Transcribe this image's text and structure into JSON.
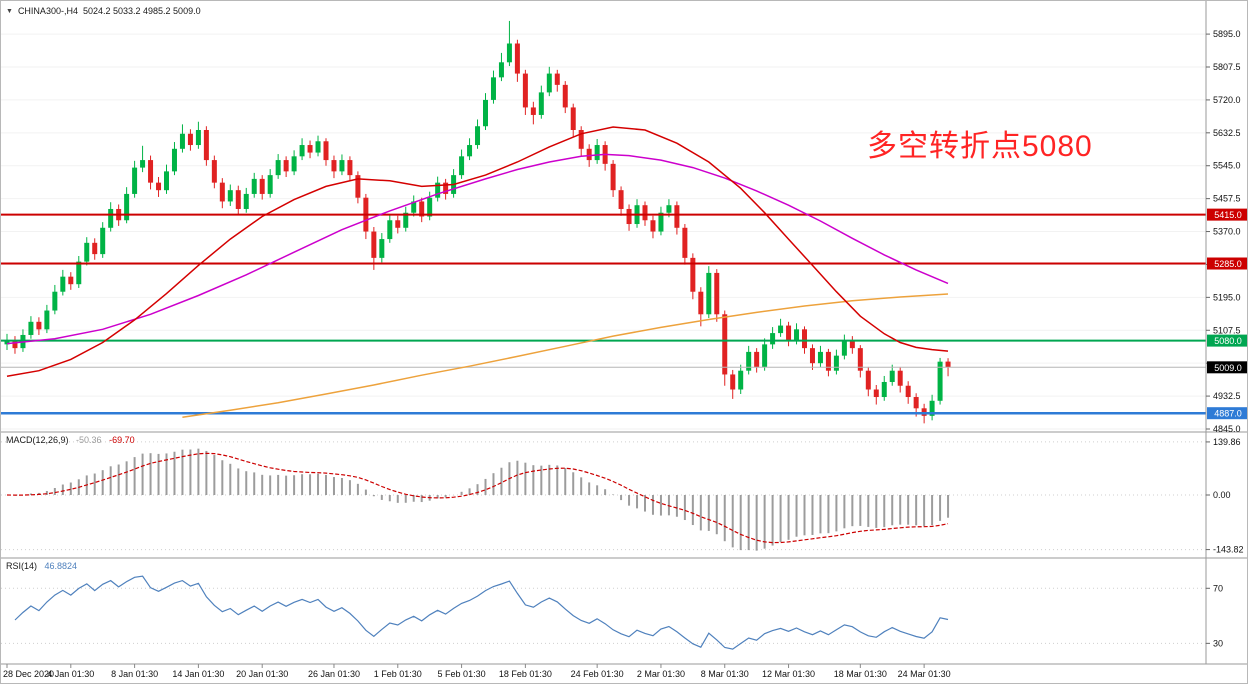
{
  "header": {
    "dropdown_icon": "▼",
    "symbol": "CHINA300-,H4",
    "ohlc": "5024.2 5033.2 4985.2 5009.0"
  },
  "annotation": {
    "text": "多空转折点5080",
    "color": "#ff2424"
  },
  "chart_data": [
    {
      "type": "candlestick",
      "title": "CHINA300-,H4",
      "timeframe": "H4",
      "ylim": [
        4837,
        5983
      ],
      "y_ticks": [
        5895.0,
        5807.5,
        5720.0,
        5632.5,
        5545.0,
        5457.5,
        5370.0,
        5282.5,
        5195.0,
        5107.5,
        5020.0,
        4932.5,
        4845.0
      ],
      "colors": {
        "up": "#00b345",
        "down": "#e02222"
      },
      "x_labels": [
        {
          "label": "28 Dec 2020",
          "index": 0
        },
        {
          "label": "4 Jan 01:30",
          "index": 8
        },
        {
          "label": "8 Jan 01:30",
          "index": 16
        },
        {
          "label": "14 Jan 01:30",
          "index": 24
        },
        {
          "label": "20 Jan 01:30",
          "index": 32
        },
        {
          "label": "26 Jan 01:30",
          "index": 41
        },
        {
          "label": "1 Feb 01:30",
          "index": 49
        },
        {
          "label": "5 Feb 01:30",
          "index": 57
        },
        {
          "label": "18 Feb 01:30",
          "index": 65
        },
        {
          "label": "24 Feb 01:30",
          "index": 74
        },
        {
          "label": "2 Mar 01:30",
          "index": 82
        },
        {
          "label": "8 Mar 01:30",
          "index": 90
        },
        {
          "label": "12 Mar 01:30",
          "index": 98
        },
        {
          "label": "18 Mar 01:30",
          "index": 107
        },
        {
          "label": "24 Mar 01:30",
          "index": 115
        }
      ],
      "levels": [
        {
          "label": "5415.0",
          "value": 5415.0,
          "color": "#cc0000",
          "width": 2
        },
        {
          "label": "5285.0",
          "value": 5285.0,
          "color": "#cc0000",
          "width": 2
        },
        {
          "label": "5080.0",
          "value": 5080.0,
          "color": "#00a651",
          "width": 2
        },
        {
          "label": "4887.0",
          "value": 4887.0,
          "color": "#2e7bd6",
          "width": 2.5
        },
        {
          "label": "5009.0",
          "value": 5009.0,
          "color": "#b5b5b5",
          "width": 1,
          "tag_bg": "#000000"
        }
      ],
      "moving_averages": [
        {
          "name": "ma-orange-slow",
          "color": "#eda23c",
          "points": [
            [
              22,
              4876
            ],
            [
              28,
              4895
            ],
            [
              34,
              4915
            ],
            [
              40,
              4938
            ],
            [
              46,
              4962
            ],
            [
              52,
              4988
            ],
            [
              58,
              5012
            ],
            [
              64,
              5038
            ],
            [
              70,
              5065
            ],
            [
              76,
              5092
            ],
            [
              82,
              5115
            ],
            [
              88,
              5136
            ],
            [
              94,
              5155
            ],
            [
              100,
              5172
            ],
            [
              106,
              5186
            ],
            [
              112,
              5196
            ],
            [
              118,
              5204
            ]
          ]
        },
        {
          "name": "ma-magenta-medium",
          "color": "#cc00cc",
          "points": [
            [
              0,
              5072
            ],
            [
              6,
              5085
            ],
            [
              12,
              5110
            ],
            [
              18,
              5150
            ],
            [
              24,
              5200
            ],
            [
              30,
              5255
            ],
            [
              36,
              5315
            ],
            [
              42,
              5375
            ],
            [
              48,
              5425
            ],
            [
              54,
              5470
            ],
            [
              60,
              5510
            ],
            [
              64,
              5535
            ],
            [
              68,
              5555
            ],
            [
              72,
              5570
            ],
            [
              75,
              5575
            ],
            [
              78,
              5572
            ],
            [
              82,
              5560
            ],
            [
              86,
              5540
            ],
            [
              90,
              5512
            ],
            [
              94,
              5478
            ],
            [
              98,
              5440
            ],
            [
              102,
              5398
            ],
            [
              106,
              5352
            ],
            [
              110,
              5308
            ],
            [
              114,
              5268
            ],
            [
              118,
              5232
            ]
          ]
        },
        {
          "name": "ma-red-fast",
          "color": "#d40000",
          "points": [
            [
              0,
              4985
            ],
            [
              4,
              5000
            ],
            [
              8,
              5030
            ],
            [
              12,
              5075
            ],
            [
              16,
              5135
            ],
            [
              20,
              5205
            ],
            [
              24,
              5280
            ],
            [
              28,
              5350
            ],
            [
              32,
              5410
            ],
            [
              36,
              5455
            ],
            [
              40,
              5490
            ],
            [
              44,
              5510
            ],
            [
              48,
              5505
            ],
            [
              52,
              5490
            ],
            [
              56,
              5495
            ],
            [
              60,
              5520
            ],
            [
              64,
              5555
            ],
            [
              68,
              5595
            ],
            [
              72,
              5630
            ],
            [
              76,
              5648
            ],
            [
              80,
              5640
            ],
            [
              84,
              5605
            ],
            [
              88,
              5555
            ],
            [
              92,
              5485
            ],
            [
              95,
              5420
            ],
            [
              98,
              5350
            ],
            [
              101,
              5280
            ],
            [
              104,
              5210
            ],
            [
              107,
              5145
            ],
            [
              110,
              5098
            ],
            [
              112,
              5075
            ],
            [
              114,
              5062
            ],
            [
              116,
              5056
            ],
            [
              118,
              5052
            ]
          ]
        }
      ],
      "ohlc": [
        [
          5070,
          5098,
          5055,
          5080
        ],
        [
          5080,
          5092,
          5045,
          5060
        ],
        [
          5060,
          5110,
          5050,
          5095
        ],
        [
          5095,
          5145,
          5085,
          5130
        ],
        [
          5130,
          5142,
          5095,
          5110
        ],
        [
          5110,
          5175,
          5100,
          5160
        ],
        [
          5160,
          5228,
          5150,
          5210
        ],
        [
          5210,
          5268,
          5200,
          5250
        ],
        [
          5250,
          5262,
          5215,
          5230
        ],
        [
          5230,
          5305,
          5220,
          5290
        ],
        [
          5290,
          5355,
          5280,
          5340
        ],
        [
          5340,
          5352,
          5295,
          5310
        ],
        [
          5310,
          5395,
          5300,
          5380
        ],
        [
          5380,
          5448,
          5370,
          5430
        ],
        [
          5430,
          5442,
          5385,
          5400
        ],
        [
          5400,
          5488,
          5392,
          5470
        ],
        [
          5470,
          5558,
          5460,
          5540
        ],
        [
          5540,
          5598,
          5528,
          5560
        ],
        [
          5560,
          5572,
          5482,
          5500
        ],
        [
          5500,
          5515,
          5462,
          5480
        ],
        [
          5480,
          5548,
          5470,
          5530
        ],
        [
          5530,
          5608,
          5520,
          5590
        ],
        [
          5590,
          5655,
          5580,
          5630
        ],
        [
          5630,
          5642,
          5585,
          5600
        ],
        [
          5600,
          5662,
          5590,
          5640
        ],
        [
          5640,
          5650,
          5545,
          5560
        ],
        [
          5560,
          5572,
          5485,
          5500
        ],
        [
          5500,
          5512,
          5432,
          5450
        ],
        [
          5450,
          5495,
          5438,
          5480
        ],
        [
          5480,
          5492,
          5415,
          5430
        ],
        [
          5430,
          5486,
          5420,
          5470
        ],
        [
          5470,
          5526,
          5460,
          5510
        ],
        [
          5510,
          5520,
          5455,
          5470
        ],
        [
          5470,
          5536,
          5460,
          5520
        ],
        [
          5520,
          5576,
          5510,
          5560
        ],
        [
          5560,
          5570,
          5515,
          5530
        ],
        [
          5530,
          5586,
          5520,
          5570
        ],
        [
          5570,
          5618,
          5560,
          5600
        ],
        [
          5600,
          5612,
          5565,
          5580
        ],
        [
          5580,
          5625,
          5570,
          5610
        ],
        [
          5610,
          5618,
          5545,
          5560
        ],
        [
          5560,
          5572,
          5512,
          5530
        ],
        [
          5530,
          5575,
          5520,
          5560
        ],
        [
          5560,
          5570,
          5505,
          5520
        ],
        [
          5520,
          5530,
          5445,
          5460
        ],
        [
          5460,
          5470,
          5350,
          5370
        ],
        [
          5370,
          5382,
          5268,
          5300
        ],
        [
          5300,
          5366,
          5288,
          5350
        ],
        [
          5350,
          5415,
          5340,
          5400
        ],
        [
          5400,
          5412,
          5365,
          5380
        ],
        [
          5380,
          5436,
          5370,
          5420
        ],
        [
          5420,
          5466,
          5410,
          5450
        ],
        [
          5450,
          5460,
          5395,
          5410
        ],
        [
          5410,
          5476,
          5400,
          5460
        ],
        [
          5460,
          5516,
          5450,
          5500
        ],
        [
          5500,
          5510,
          5455,
          5470
        ],
        [
          5470,
          5536,
          5460,
          5520
        ],
        [
          5520,
          5588,
          5510,
          5570
        ],
        [
          5570,
          5618,
          5560,
          5600
        ],
        [
          5600,
          5668,
          5590,
          5650
        ],
        [
          5650,
          5738,
          5640,
          5720
        ],
        [
          5720,
          5798,
          5710,
          5780
        ],
        [
          5780,
          5845,
          5770,
          5820
        ],
        [
          5820,
          5930,
          5810,
          5870
        ],
        [
          5870,
          5880,
          5768,
          5790
        ],
        [
          5790,
          5800,
          5680,
          5700
        ],
        [
          5700,
          5715,
          5655,
          5680
        ],
        [
          5680,
          5758,
          5670,
          5740
        ],
        [
          5740,
          5808,
          5730,
          5790
        ],
        [
          5790,
          5800,
          5742,
          5760
        ],
        [
          5760,
          5770,
          5685,
          5700
        ],
        [
          5700,
          5710,
          5622,
          5640
        ],
        [
          5640,
          5650,
          5572,
          5590
        ],
        [
          5590,
          5602,
          5542,
          5560
        ],
        [
          5560,
          5616,
          5550,
          5600
        ],
        [
          5600,
          5610,
          5532,
          5550
        ],
        [
          5550,
          5560,
          5462,
          5480
        ],
        [
          5480,
          5490,
          5412,
          5430
        ],
        [
          5430,
          5442,
          5372,
          5390
        ],
        [
          5390,
          5456,
          5380,
          5440
        ],
        [
          5440,
          5450,
          5385,
          5400
        ],
        [
          5400,
          5412,
          5352,
          5370
        ],
        [
          5370,
          5436,
          5360,
          5420
        ],
        [
          5420,
          5456,
          5408,
          5440
        ],
        [
          5440,
          5450,
          5362,
          5380
        ],
        [
          5380,
          5390,
          5282,
          5300
        ],
        [
          5300,
          5312,
          5190,
          5210
        ],
        [
          5210,
          5222,
          5118,
          5150
        ],
        [
          5150,
          5278,
          5140,
          5260
        ],
        [
          5260,
          5270,
          5130,
          5150
        ],
        [
          5150,
          5160,
          4960,
          4990
        ],
        [
          4990,
          5002,
          4925,
          4950
        ],
        [
          4950,
          5016,
          4938,
          5000
        ],
        [
          5000,
          5066,
          4990,
          5050
        ],
        [
          5050,
          5060,
          4995,
          5010
        ],
        [
          5010,
          5086,
          5000,
          5070
        ],
        [
          5070,
          5116,
          5058,
          5100
        ],
        [
          5100,
          5138,
          5090,
          5120
        ],
        [
          5120,
          5130,
          5065,
          5080
        ],
        [
          5080,
          5126,
          5070,
          5110
        ],
        [
          5110,
          5118,
          5045,
          5060
        ],
        [
          5060,
          5070,
          5002,
          5020
        ],
        [
          5020,
          5066,
          5010,
          5050
        ],
        [
          5050,
          5058,
          4985,
          5000
        ],
        [
          5000,
          5056,
          4990,
          5040
        ],
        [
          5040,
          5096,
          5030,
          5080
        ],
        [
          5080,
          5092,
          5045,
          5060
        ],
        [
          5060,
          5068,
          4982,
          5000
        ],
        [
          5000,
          5010,
          4932,
          4950
        ],
        [
          4950,
          4962,
          4910,
          4930
        ],
        [
          4930,
          4986,
          4920,
          4970
        ],
        [
          4970,
          5016,
          4960,
          5000
        ],
        [
          5000,
          5010,
          4942,
          4960
        ],
        [
          4960,
          4972,
          4912,
          4930
        ],
        [
          4930,
          4940,
          4878,
          4900
        ],
        [
          4900,
          4912,
          4860,
          4880
        ],
        [
          4880,
          4936,
          4868,
          4920
        ],
        [
          4920,
          5034,
          4910,
          5024
        ],
        [
          5024.2,
          5033.2,
          4985.2,
          5009.0
        ]
      ]
    },
    {
      "type": "line",
      "name": "MACD",
      "label": "MACD(12,26,9)",
      "values_text": [
        "-50.36",
        "-69.70"
      ],
      "params": [
        12,
        26,
        9
      ],
      "y_ticks": [
        139.86,
        0.0,
        -143.82
      ],
      "ylim": [
        -166,
        166
      ],
      "histogram_color": "#9c9c9c",
      "signal_color": "#cc0000"
    },
    {
      "type": "line",
      "name": "RSI",
      "label": "RSI(14)",
      "value_text": "46.8824",
      "period": 14,
      "levels": [
        70,
        30
      ],
      "ylim": [
        15,
        92
      ],
      "line_color": "#4f81bd"
    }
  ]
}
